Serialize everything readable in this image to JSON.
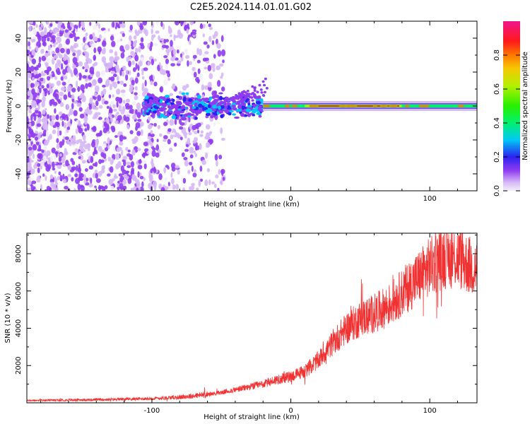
{
  "title": "C2E5.2024.114.01.01.G02",
  "chart_data": [
    {
      "type": "heatmap",
      "xlabel": "Height of straight line (km)",
      "ylabel": "Frequency (Hz)",
      "xlim": [
        -190,
        134
      ],
      "ylim": [
        -50,
        50
      ],
      "xticks": [
        -100,
        0,
        100
      ],
      "xtick_labels": [
        "-100",
        "0",
        "100"
      ],
      "yticks": [
        -40,
        -20,
        0,
        20,
        40
      ],
      "ytick_labels": [
        "-40",
        "-20",
        "0",
        "20",
        "40"
      ],
      "colorbar": {
        "label": "Normalized spectral amplitude",
        "range": [
          0,
          1
        ],
        "ticks": [
          0.0,
          0.2,
          0.4,
          0.6,
          0.8
        ],
        "tick_labels": [
          "0.0",
          "0.2",
          "0.4",
          "0.6",
          "0.8"
        ],
        "colors": [
          "#f2eefa",
          "#d6b8f6",
          "#8f3cf0",
          "#2a22f0",
          "#00c8f5",
          "#00f070",
          "#28f000",
          "#b4f000",
          "#f5c800",
          "#ff7800",
          "#ff1a1a",
          "#f0148c"
        ]
      },
      "features": [
        {
          "name": "scattered noise",
          "x_range": [
            -190,
            -55
          ],
          "y_range": [
            -50,
            50
          ],
          "amplitude": 0.15
        },
        {
          "name": "carrier onset",
          "x_range": [
            -105,
            -20
          ],
          "y_range": [
            -8,
            8
          ],
          "amplitude": 0.45
        },
        {
          "name": "carrier",
          "x_range": [
            -20,
            134
          ],
          "y_center": 0,
          "amplitude": 0.95
        }
      ]
    },
    {
      "type": "line",
      "xlabel": "Height of straight line (km)",
      "ylabel": "SNR (10 * v/v)",
      "xlim": [
        -190,
        134
      ],
      "ylim": [
        0,
        9100
      ],
      "xticks": [
        -100,
        0,
        100
      ],
      "xtick_labels": [
        "-100",
        "0",
        "100"
      ],
      "yticks": [
        2000,
        4000,
        6000,
        8000
      ],
      "ytick_labels": [
        "2000",
        "4000",
        "6000",
        "8000"
      ],
      "color": "#f03232",
      "x": [
        -190,
        -160,
        -130,
        -100,
        -80,
        -60,
        -50,
        -40,
        -30,
        -20,
        -10,
        0,
        10,
        20,
        30,
        40,
        50,
        60,
        70,
        80,
        90,
        100,
        110,
        120,
        130,
        134
      ],
      "y": [
        120,
        150,
        180,
        230,
        300,
        450,
        550,
        700,
        850,
        1000,
        1250,
        1400,
        1700,
        2300,
        3200,
        4000,
        4500,
        4800,
        5200,
        5900,
        6600,
        7300,
        7800,
        7800,
        7300,
        7200
      ]
    }
  ]
}
